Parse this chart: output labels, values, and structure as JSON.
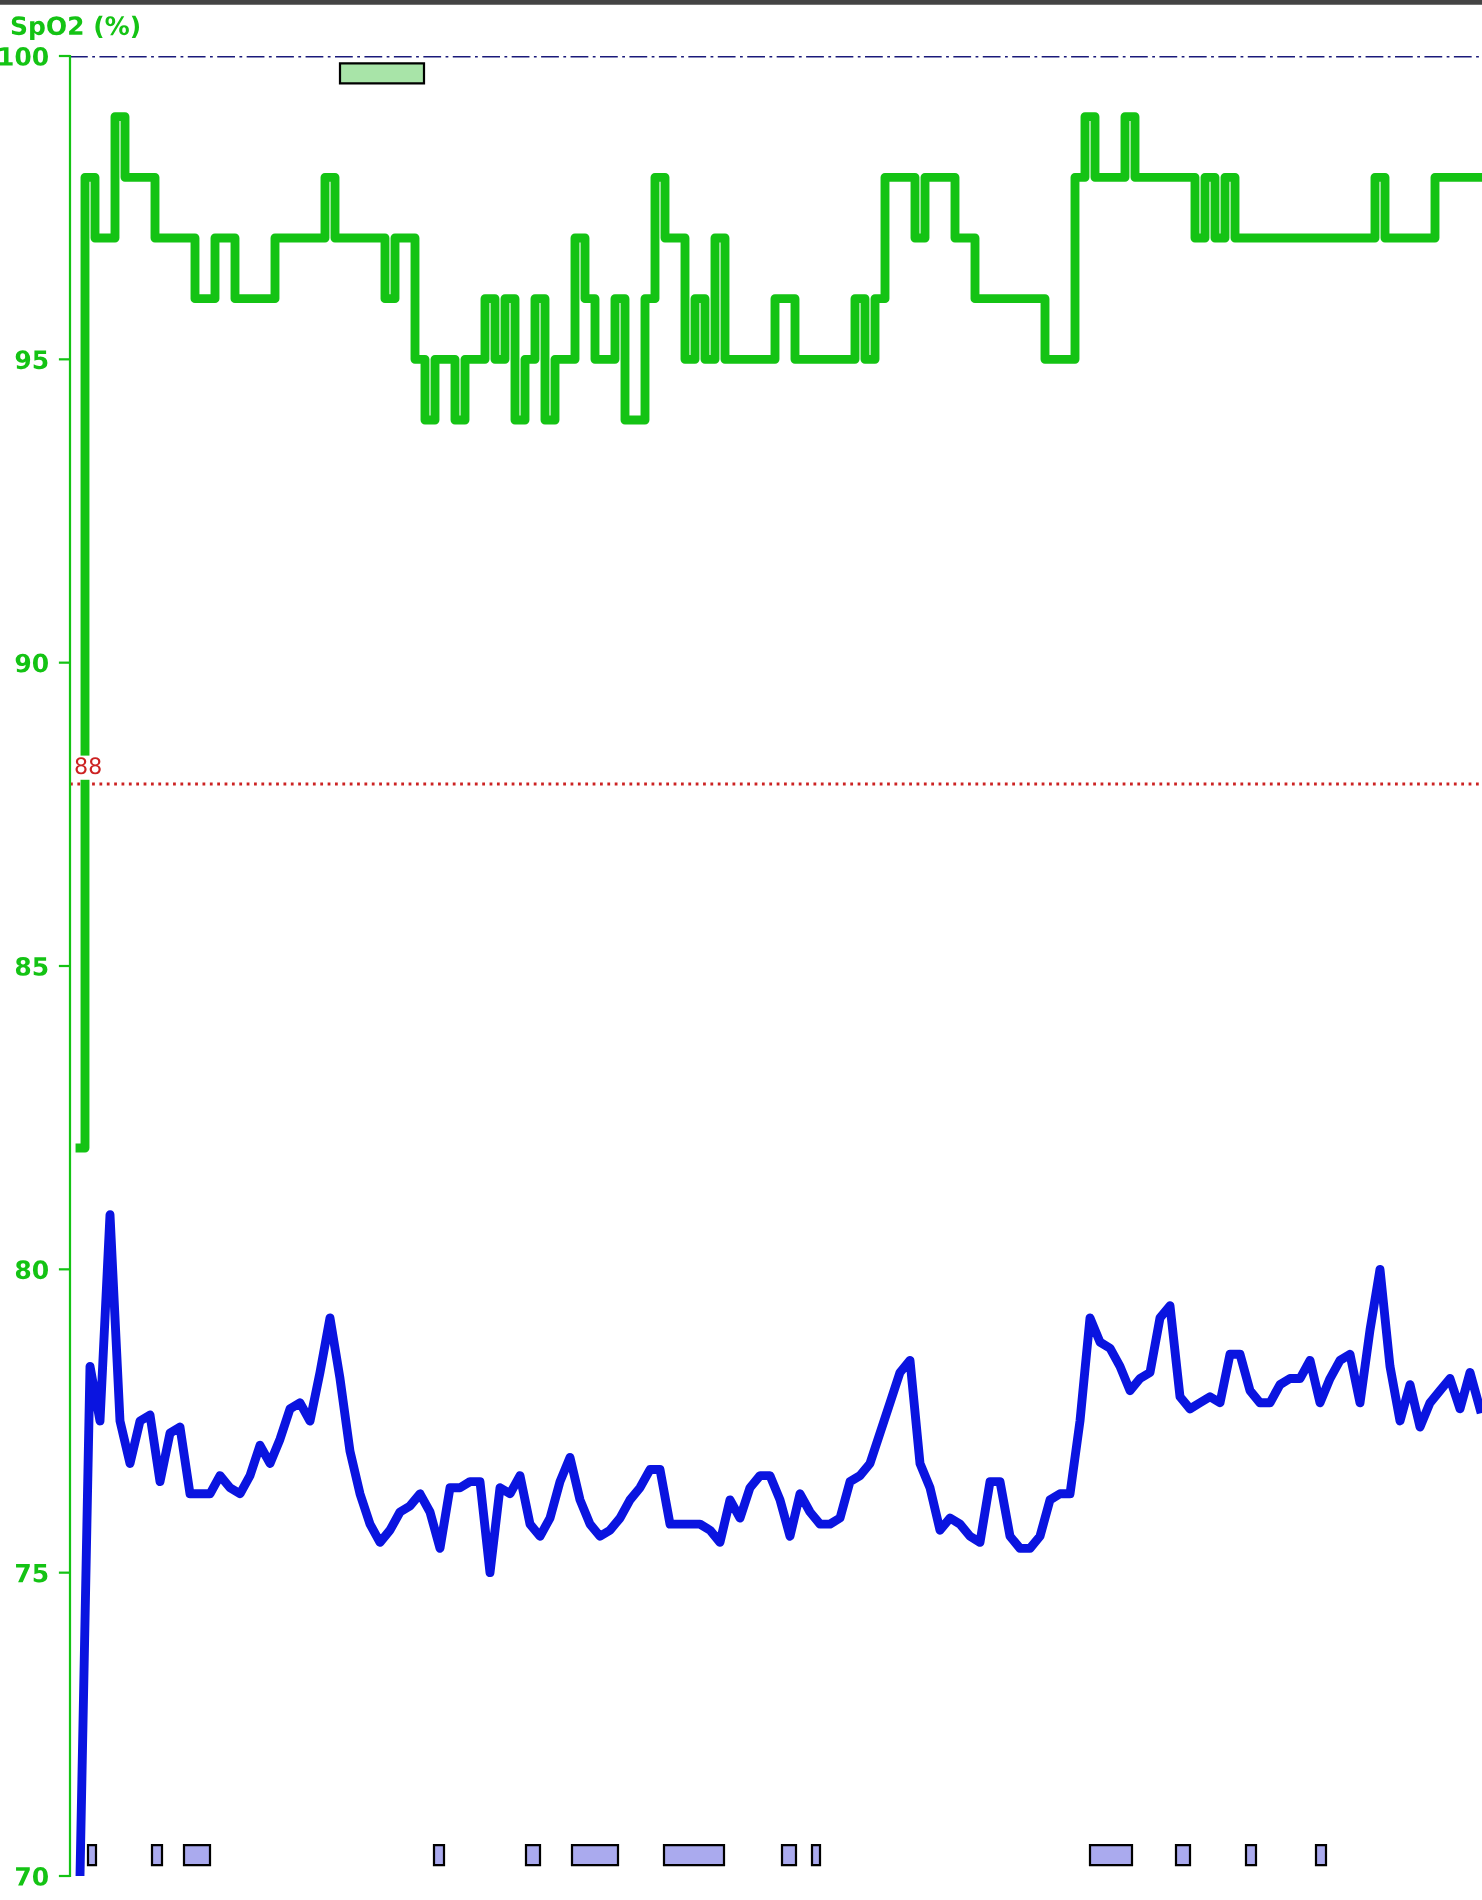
{
  "chart_data": {
    "type": "step",
    "ylabel": "SpO2 (%)",
    "categories": [
      null,
      null,
      null,
      null,
      null,
      null,
      null,
      null,
      null,
      null,
      null,
      null,
      null,
      null,
      null,
      null,
      null,
      null,
      null,
      null,
      null,
      null,
      null,
      null,
      null,
      null,
      null,
      null,
      null,
      null,
      null,
      null,
      null,
      null,
      null,
      null,
      null,
      null,
      null,
      null,
      null,
      null,
      null,
      null,
      null,
      null,
      null,
      null,
      null,
      null,
      null,
      null,
      null,
      null,
      null,
      null,
      null,
      null,
      null,
      null,
      null,
      null,
      null,
      null,
      null,
      null,
      null,
      null,
      null,
      null,
      null,
      null,
      null,
      null,
      null,
      null,
      null,
      null,
      null,
      null,
      null,
      null,
      null,
      null,
      null,
      null,
      null,
      null,
      null,
      null,
      null,
      null,
      null,
      null,
      null,
      null,
      null,
      null,
      null,
      null,
      null,
      null,
      null,
      null,
      null,
      null,
      null,
      null,
      null,
      null,
      null,
      null,
      null,
      null,
      null,
      null,
      null,
      null,
      null,
      null,
      null,
      null,
      null,
      null,
      null,
      null,
      null,
      null,
      null,
      null,
      null,
      null,
      null,
      null,
      null,
      null,
      null,
      null,
      null,
      null,
      null
    ],
    "series": [
      {
        "color": "#14c314",
        "values": [
          82,
          98,
          97,
          97,
          99,
          98,
          98,
          98,
          97,
          97,
          97,
          97,
          96,
          96,
          97,
          97,
          96,
          96,
          96,
          96,
          97,
          97,
          97,
          97,
          97,
          98,
          97,
          97,
          97,
          97,
          97,
          96,
          97,
          97,
          95,
          94,
          95,
          95,
          94,
          95,
          95,
          96,
          95,
          96,
          94,
          95,
          96,
          94,
          95,
          95,
          97,
          96,
          95,
          95,
          96,
          94,
          94,
          96,
          98,
          97,
          97,
          95,
          96,
          95,
          97,
          95,
          95,
          95,
          95,
          95,
          96,
          96,
          95,
          95,
          95,
          95,
          95,
          95,
          96,
          95,
          96,
          98,
          98,
          98,
          97,
          98,
          98,
          98,
          97,
          97,
          96,
          96,
          96,
          96,
          96,
          96,
          96,
          95,
          95,
          95,
          98,
          99,
          98,
          98,
          98,
          99,
          98,
          98,
          98,
          98,
          98,
          98,
          97,
          98,
          97,
          98,
          97,
          97,
          97,
          97,
          97,
          97,
          97,
          97,
          97,
          97,
          97,
          97,
          97,
          97,
          98,
          97,
          97,
          97,
          97,
          97,
          98,
          98,
          98,
          98,
          98
        ]
      },
      {
        "color": "#0a14e0",
        "type": "line",
        "values": [
          70,
          78.4,
          77.5,
          80.9,
          77.5,
          76.8,
          77.5,
          77.6,
          76.5,
          77.3,
          77.4,
          76.3,
          76.3,
          76.3,
          76.6,
          76.4,
          76.3,
          76.6,
          77.1,
          76.8,
          77.2,
          77.7,
          77.8,
          77.5,
          78.3,
          79.2,
          78.2,
          77.0,
          76.3,
          75.8,
          75.5,
          75.7,
          76.0,
          76.1,
          76.3,
          76.0,
          75.4,
          76.4,
          76.4,
          76.5,
          76.5,
          75.0,
          76.4,
          76.3,
          76.6,
          75.8,
          75.6,
          75.9,
          76.5,
          76.9,
          76.2,
          75.8,
          75.6,
          75.7,
          75.9,
          76.2,
          76.4,
          76.7,
          76.7,
          75.8,
          75.8,
          75.8,
          75.8,
          75.7,
          75.5,
          76.2,
          75.9,
          76.4,
          76.6,
          76.6,
          76.2,
          75.6,
          76.3,
          76.0,
          75.8,
          75.8,
          75.9,
          76.5,
          76.6,
          76.8,
          77.3,
          77.8,
          78.3,
          78.5,
          76.8,
          76.4,
          75.7,
          75.9,
          75.8,
          75.6,
          75.5,
          76.5,
          76.5,
          75.6,
          75.4,
          75.4,
          75.6,
          76.2,
          76.3,
          76.3,
          77.5,
          79.2,
          78.8,
          78.7,
          78.4,
          78.0,
          78.2,
          78.3,
          79.2,
          79.4,
          77.9,
          77.7,
          77.8,
          77.9,
          77.8,
          78.6,
          78.6,
          78.0,
          77.8,
          77.8,
          78.1,
          78.2,
          78.2,
          78.5,
          77.8,
          78.2,
          78.5,
          78.6,
          77.8,
          79.0,
          80.0,
          78.4,
          77.5,
          78.1,
          77.4,
          77.8,
          78.0,
          78.2,
          77.7,
          78.3,
          77.7
        ]
      }
    ],
    "ylim": [
      70,
      100
    ],
    "yticks": [
      70,
      75,
      80,
      85,
      90,
      95,
      100
    ],
    "grid": false,
    "ref_lines": [
      {
        "axis": "y",
        "value": 100,
        "label": null,
        "color": "#1a1a7a",
        "line_style": "dashdot"
      },
      {
        "axis": "y",
        "value": 88,
        "label": "88",
        "color": "#cc2222",
        "line_style": "dotted"
      }
    ],
    "tick_labels": "y"
  }
}
